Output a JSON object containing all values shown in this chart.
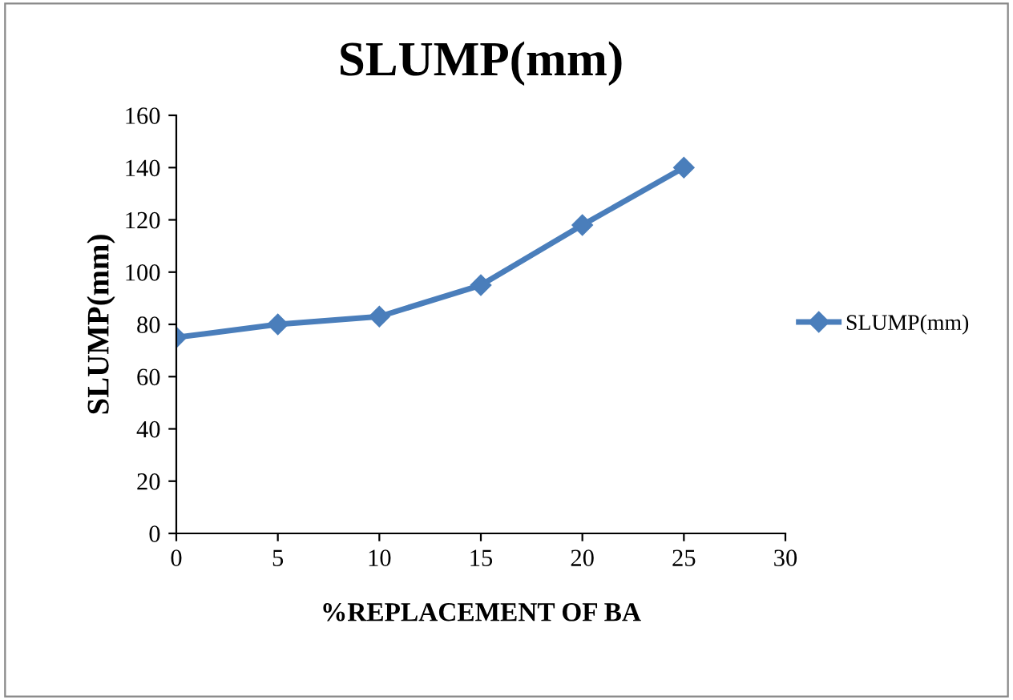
{
  "chart_data": {
    "type": "line",
    "title": "SLUMP(mm)",
    "xlabel": "%REPLACEMENT OF BA",
    "ylabel": "SLUMP(mm)",
    "x": [
      0,
      5,
      10,
      15,
      20,
      25
    ],
    "series": [
      {
        "name": "SLUMP(mm)",
        "color": "#4a7ebb",
        "values": [
          75,
          80,
          83,
          95,
          118,
          140
        ]
      }
    ],
    "xlim": [
      0,
      30
    ],
    "xticks": [
      0,
      5,
      10,
      15,
      20,
      25,
      30
    ],
    "ylim": [
      0,
      160
    ],
    "yticks": [
      0,
      20,
      40,
      60,
      80,
      100,
      120,
      140,
      160
    ],
    "grid": false,
    "legend": "right",
    "marker": "diamond",
    "line_style": "solid"
  }
}
